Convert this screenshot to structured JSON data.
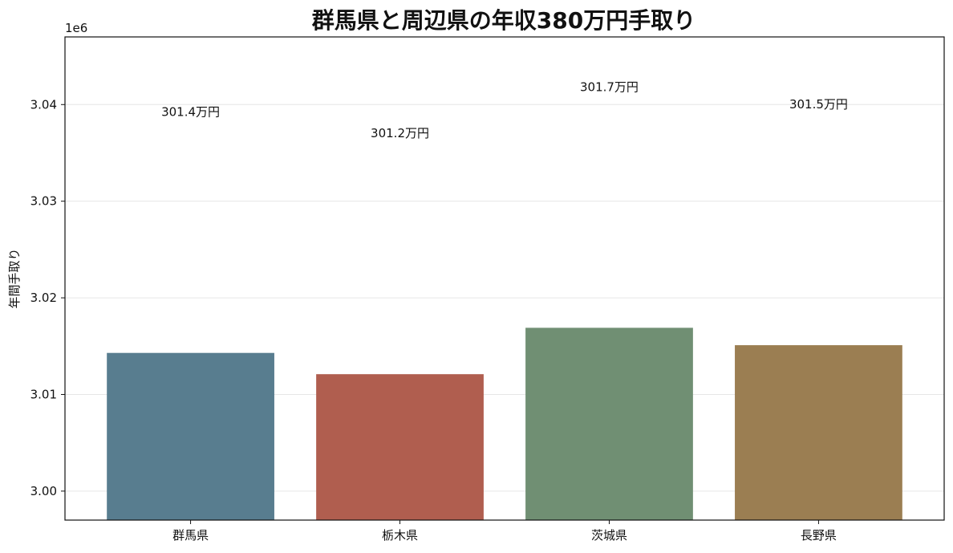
{
  "chart_data": {
    "type": "bar",
    "title": "群馬県と周辺県の年収380万円手取り",
    "xlabel": "",
    "ylabel": "年間手取り",
    "y_offset_label": "1e6",
    "categories": [
      "群馬県",
      "栃木県",
      "茨城県",
      "長野県"
    ],
    "values": [
      3014300,
      3012100,
      3016900,
      3015100
    ],
    "data_labels": [
      "301.4万円",
      "301.2万円",
      "301.7万円",
      "301.5万円"
    ],
    "colors": [
      "#587d8f",
      "#b05e4f",
      "#708f73",
      "#9b7e52"
    ],
    "ylim": [
      2997000,
      3047000
    ],
    "yticks": [
      3000000,
      3010000,
      3020000,
      3030000,
      3040000
    ],
    "ytick_labels": [
      "3.00",
      "3.01",
      "3.02",
      "3.03",
      "3.04"
    ],
    "grid": "horizontal",
    "legend": "none"
  }
}
